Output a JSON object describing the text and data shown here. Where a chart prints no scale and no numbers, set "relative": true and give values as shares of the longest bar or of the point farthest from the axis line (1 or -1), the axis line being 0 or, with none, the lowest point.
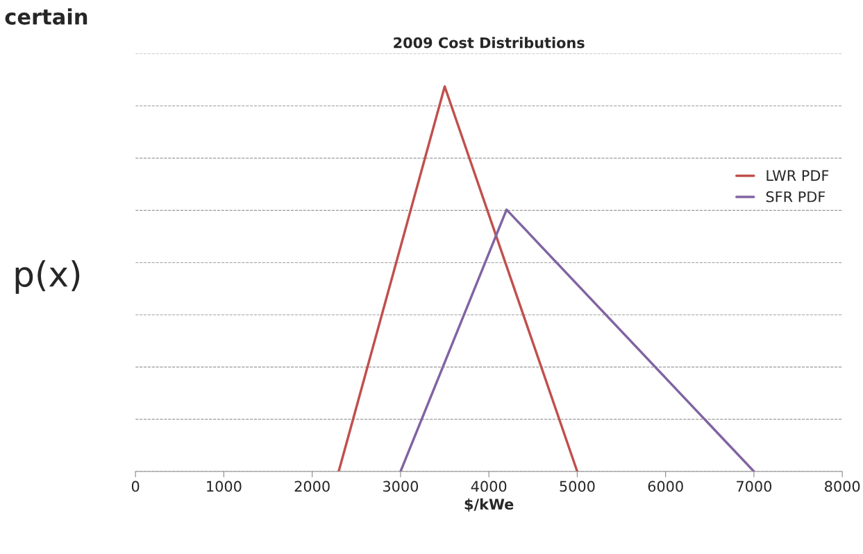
{
  "chart_data": {
    "type": "line",
    "title": "2009 Cost Distributions",
    "xlabel": "$/kWe",
    "ylabel": "p(x)",
    "relative": true,
    "xlim": [
      0,
      8000
    ],
    "xticks": [
      0,
      1000,
      2000,
      3000,
      4000,
      5000,
      6000,
      7000,
      8000
    ],
    "grid": "y",
    "legend": "right",
    "marker": "none",
    "line_style": "solid",
    "annotations": [
      "certain"
    ],
    "series": [
      {
        "name": "LWR PDF",
        "color": "#c0504d",
        "x": [
          2300,
          3500,
          5000
        ],
        "values": [
          0,
          1,
          0
        ]
      },
      {
        "name": "SFR PDF",
        "color": "#8064a2",
        "x": [
          3000,
          4200,
          7000
        ],
        "values": [
          0,
          0.68,
          0
        ]
      }
    ]
  }
}
